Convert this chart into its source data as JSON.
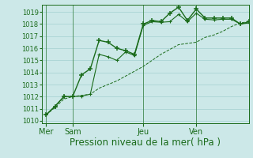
{
  "background_color": "#cce8e8",
  "grid_color": "#aad4d4",
  "line_color": "#1a6b1a",
  "title": "Pression niveau de la mer( hPa )",
  "title_fontsize": 8.5,
  "ylim": [
    1009.8,
    1019.6
  ],
  "yticks": [
    1010,
    1011,
    1012,
    1013,
    1014,
    1015,
    1016,
    1017,
    1018,
    1019
  ],
  "day_labels": [
    "Mer",
    "Sam",
    "Jeu",
    "Ven"
  ],
  "day_positions": [
    0,
    3,
    11,
    17
  ],
  "xlim": [
    -0.5,
    23.0
  ],
  "series1_x": [
    0,
    1,
    2,
    3,
    4,
    5,
    6,
    7,
    8,
    9,
    10,
    11,
    12,
    13,
    14,
    15,
    16,
    17,
    18,
    19,
    20,
    21,
    22,
    23
  ],
  "series1_y": [
    1010.5,
    1011.2,
    1012.0,
    1012.0,
    1013.8,
    1014.3,
    1016.65,
    1016.5,
    1016.0,
    1015.8,
    1015.5,
    1018.0,
    1018.3,
    1018.2,
    1018.9,
    1019.4,
    1018.3,
    1019.25,
    1018.5,
    1018.5,
    1018.5,
    1018.5,
    1018.0,
    1018.2
  ],
  "series2_x": [
    0,
    1,
    2,
    3,
    4,
    5,
    6,
    7,
    8,
    9,
    10,
    11,
    12,
    13,
    14,
    15,
    16,
    17,
    18,
    19,
    20,
    21,
    22,
    23
  ],
  "series2_y": [
    1010.5,
    1011.2,
    1012.0,
    1012.0,
    1012.05,
    1012.2,
    1015.5,
    1015.3,
    1015.0,
    1015.7,
    1015.4,
    1017.9,
    1018.2,
    1018.15,
    1018.2,
    1018.8,
    1018.2,
    1018.9,
    1018.4,
    1018.35,
    1018.4,
    1018.4,
    1018.0,
    1018.1
  ],
  "series3_x": [
    0,
    1,
    2,
    3,
    4,
    5,
    6,
    7,
    8,
    9,
    10,
    11,
    12,
    13,
    14,
    15,
    16,
    17,
    18,
    19,
    20,
    21,
    22,
    23
  ],
  "series3_y": [
    1010.5,
    1011.1,
    1011.8,
    1012.0,
    1012.1,
    1012.2,
    1012.7,
    1013.0,
    1013.3,
    1013.7,
    1014.1,
    1014.5,
    1015.0,
    1015.5,
    1015.9,
    1016.3,
    1016.4,
    1016.5,
    1016.9,
    1017.1,
    1017.4,
    1017.8,
    1018.1,
    1018.2
  ]
}
